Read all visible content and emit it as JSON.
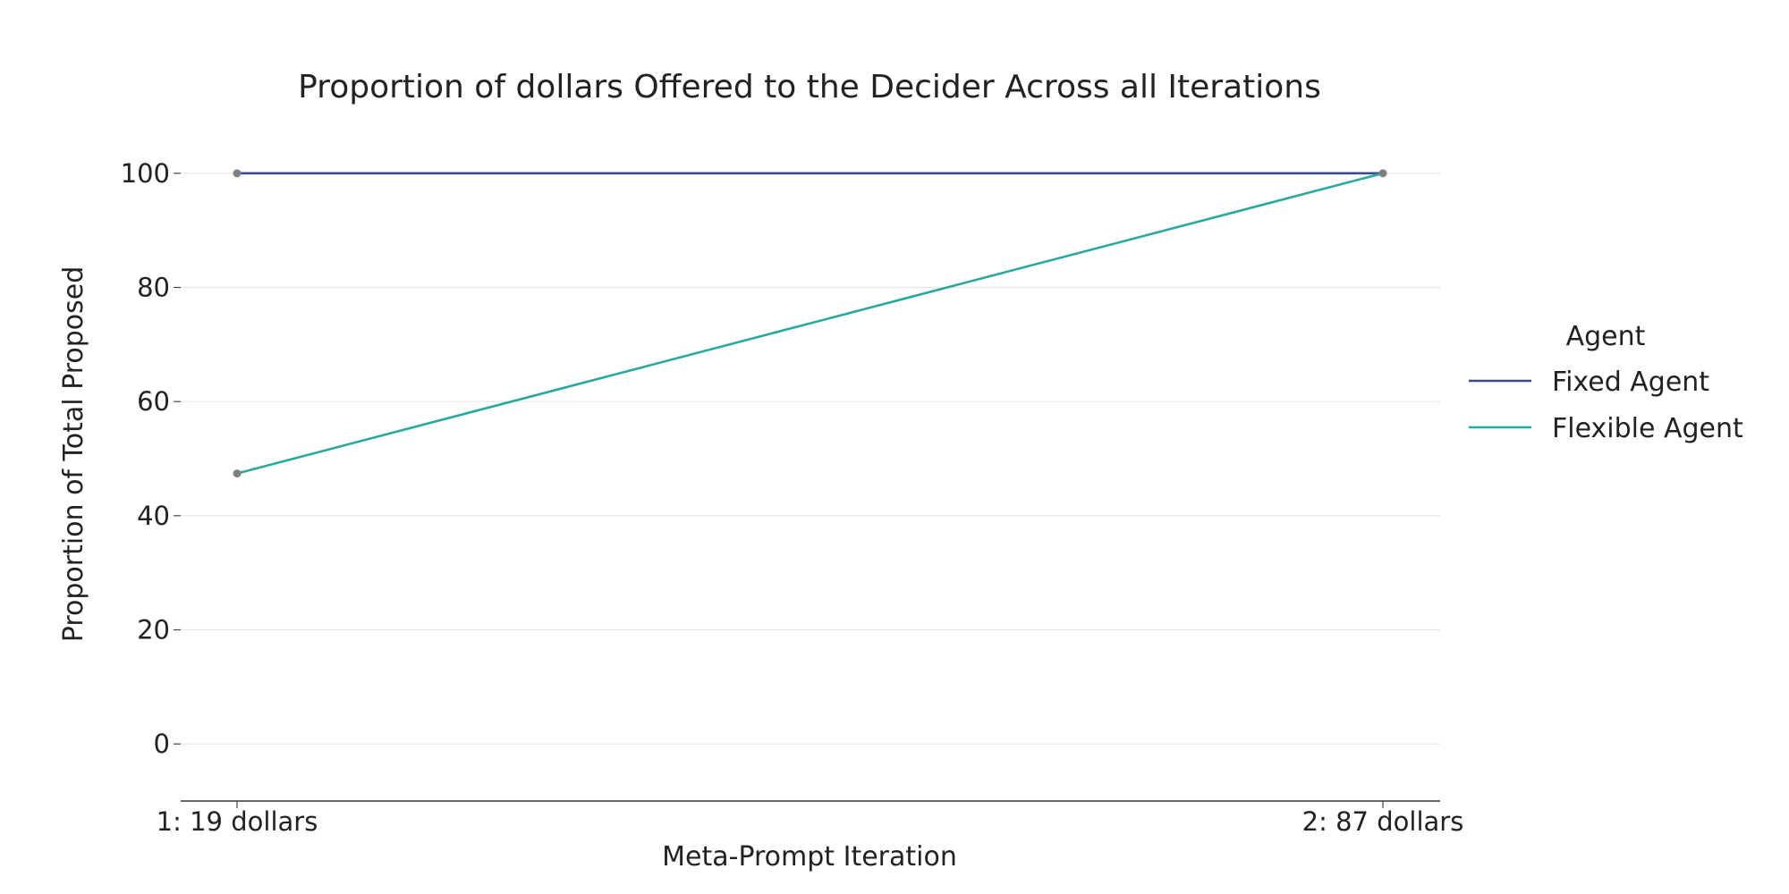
{
  "chart_data": {
    "type": "line",
    "title": "Proportion of dollars Offered to the Decider Across all Iterations",
    "xlabel": "Meta-Prompt Iteration",
    "ylabel": "Proportion of Total Proposed",
    "categories": [
      "1: 19 dollars",
      "2: 87 dollars"
    ],
    "ylim": [
      -10,
      110
    ],
    "yticks": [
      0,
      20,
      40,
      60,
      80,
      100
    ],
    "grid": true,
    "legend": {
      "title": "Agent",
      "placement": "right"
    },
    "series": [
      {
        "name": "Fixed Agent",
        "values": [
          100,
          100
        ],
        "color": "#3d4a8f"
      },
      {
        "name": "Flexible Agent",
        "values": [
          47.4,
          100
        ],
        "color": "#2aa8a0"
      }
    ],
    "marker_color": "#808080"
  }
}
